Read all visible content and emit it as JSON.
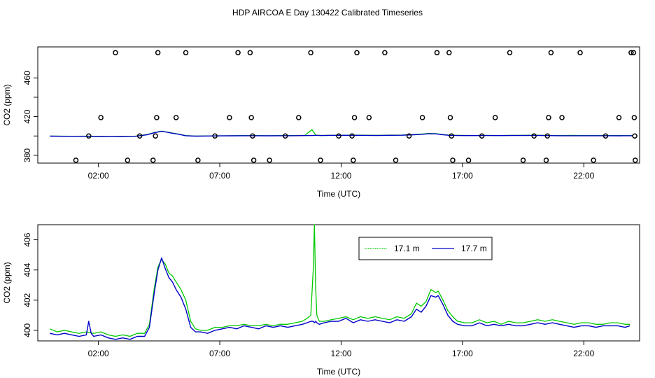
{
  "figure_title": "HDP AIRCOA E  Day 130422  Calibrated Timeseries",
  "colors": {
    "series_17_1": "#00c800",
    "series_17_7": "#0000c8",
    "axes": "#000000"
  },
  "chart_data": [
    {
      "type": "scatter",
      "title": "",
      "xlabel": "Time (UTC)",
      "ylabel": "CO2 (ppm)",
      "xlim": [
        -0.5,
        24.3
      ],
      "ylim": [
        372,
        492
      ],
      "x_ticks": [
        2,
        7,
        12,
        17,
        22
      ],
      "x_tick_labels": [
        "02:00",
        "07:00",
        "12:00",
        "17:00",
        "22:00"
      ],
      "y_ticks": [
        380,
        420,
        460
      ],
      "y_tick_labels": [
        "380",
        "420",
        "460"
      ],
      "y_minor_ticks": [
        400,
        440
      ],
      "grid": false,
      "points": {
        "marker": "open-circle",
        "x_y": [
          [
            1.07,
            375
          ],
          [
            1.6,
            400
          ],
          [
            2.1,
            419
          ],
          [
            2.7,
            486
          ],
          [
            3.2,
            375
          ],
          [
            3.7,
            400
          ],
          [
            4.25,
            375
          ],
          [
            4.35,
            400
          ],
          [
            4.4,
            419
          ],
          [
            4.45,
            486
          ],
          [
            5.2,
            419
          ],
          [
            5.6,
            486
          ],
          [
            6.1,
            375
          ],
          [
            6.8,
            400
          ],
          [
            7.4,
            419
          ],
          [
            7.75,
            486
          ],
          [
            8.25,
            486
          ],
          [
            8.3,
            419
          ],
          [
            8.35,
            400
          ],
          [
            8.4,
            375
          ],
          [
            9.05,
            375
          ],
          [
            9.7,
            400
          ],
          [
            10.25,
            419
          ],
          [
            10.75,
            486
          ],
          [
            11.15,
            375
          ],
          [
            11.9,
            400
          ],
          [
            12.45,
            400
          ],
          [
            12.5,
            375
          ],
          [
            12.55,
            419
          ],
          [
            12.65,
            486
          ],
          [
            13.15,
            419
          ],
          [
            13.8,
            486
          ],
          [
            14.25,
            375
          ],
          [
            14.8,
            400
          ],
          [
            15.35,
            419
          ],
          [
            15.95,
            486
          ],
          [
            16.45,
            486
          ],
          [
            16.5,
            419
          ],
          [
            16.55,
            400
          ],
          [
            16.6,
            375
          ],
          [
            17.25,
            375
          ],
          [
            17.8,
            400
          ],
          [
            18.35,
            419
          ],
          [
            18.95,
            486
          ],
          [
            19.5,
            375
          ],
          [
            19.95,
            400
          ],
          [
            20.45,
            375
          ],
          [
            20.5,
            400
          ],
          [
            20.55,
            419
          ],
          [
            20.65,
            486
          ],
          [
            21.1,
            419
          ],
          [
            21.85,
            486
          ],
          [
            22.4,
            375
          ],
          [
            22.9,
            400
          ],
          [
            23.45,
            419
          ],
          [
            23.95,
            486
          ],
          [
            24.05,
            486
          ],
          [
            24.08,
            419
          ],
          [
            24.1,
            400
          ],
          [
            24.12,
            375
          ]
        ]
      },
      "series": [
        {
          "color": "#00c800",
          "x": [
            0,
            0.5,
            1,
            1.5,
            2,
            2.5,
            3,
            3.5,
            4,
            4.3,
            4.6,
            4.8,
            5,
            5.3,
            5.6,
            6,
            6.5,
            7,
            7.5,
            8,
            8.5,
            9,
            9.5,
            10,
            10.5,
            10.8,
            10.95,
            11.05,
            11.2,
            11.5,
            12,
            12.5,
            13,
            13.5,
            14,
            14.5,
            15,
            15.3,
            15.6,
            15.9,
            16.2,
            16.5,
            17,
            17.5,
            18,
            18.5,
            19,
            19.5,
            20,
            20.5,
            21,
            21.5,
            22,
            22.5,
            23,
            23.5,
            24
          ],
          "y": [
            399.9,
            399.8,
            399.7,
            399.8,
            399.6,
            399.5,
            399.6,
            399.7,
            401.5,
            403.5,
            405,
            404.2,
            403.2,
            402,
            400.5,
            399.9,
            400.1,
            400.2,
            400.3,
            400.4,
            400.5,
            400.3,
            400.4,
            400.5,
            400.6,
            406.5,
            401.0,
            400.7,
            400.5,
            400.7,
            400.8,
            400.9,
            400.8,
            400.7,
            400.9,
            401.0,
            401.6,
            402.0,
            402.6,
            402.4,
            401.5,
            400.8,
            400.6,
            400.5,
            400.6,
            400.5,
            400.6,
            400.7,
            400.8,
            400.6,
            400.5,
            400.6,
            400.5,
            400.4,
            400.5,
            400.4,
            400.5
          ]
        },
        {
          "color": "#0000c8",
          "x": [
            0,
            0.5,
            1,
            1.5,
            2,
            2.5,
            3,
            3.5,
            4,
            4.3,
            4.6,
            4.8,
            5,
            5.3,
            5.6,
            6,
            6.5,
            7,
            7.5,
            8,
            8.5,
            9,
            9.5,
            10,
            10.5,
            10.8,
            10.95,
            11.05,
            11.2,
            11.5,
            12,
            12.5,
            13,
            13.5,
            14,
            14.5,
            15,
            15.3,
            15.6,
            15.9,
            16.2,
            16.5,
            17,
            17.5,
            18,
            18.5,
            19,
            19.5,
            20,
            20.5,
            21,
            21.5,
            22,
            22.5,
            23,
            23.5,
            24
          ],
          "y": [
            399.8,
            399.7,
            399.7,
            399.6,
            399.5,
            399.4,
            399.5,
            399.6,
            401.2,
            403.3,
            404.8,
            404.0,
            403.0,
            401.8,
            400.3,
            399.8,
            400.0,
            400.1,
            400.2,
            400.3,
            400.3,
            400.2,
            400.3,
            400.3,
            400.4,
            400.5,
            400.6,
            400.6,
            400.5,
            400.6,
            400.7,
            400.7,
            400.6,
            400.5,
            400.7,
            400.8,
            401.3,
            401.7,
            402.3,
            402.2,
            401.3,
            400.6,
            400.4,
            400.4,
            400.5,
            400.4,
            400.5,
            400.5,
            400.6,
            400.4,
            400.3,
            400.3,
            400.3,
            400.3,
            400.3,
            400.2,
            400.3
          ]
        }
      ]
    },
    {
      "type": "line",
      "title": "",
      "xlabel": "Time (UTC)",
      "ylabel": "CO2 (ppm)",
      "xlim": [
        -0.5,
        24.3
      ],
      "ylim": [
        399.3,
        407.0
      ],
      "x_ticks": [
        2,
        7,
        12,
        17,
        22
      ],
      "x_tick_labels": [
        "02:00",
        "07:00",
        "12:00",
        "17:00",
        "22:00"
      ],
      "y_ticks": [
        400,
        402,
        404,
        406
      ],
      "y_tick_labels": [
        "400",
        "402",
        "404",
        "406"
      ],
      "grid": false,
      "legend_position": "top-right",
      "series": [
        {
          "name": "17.1 m",
          "color": "#00c800",
          "x": [
            0,
            0.3,
            0.6,
            0.9,
            1.2,
            1.5,
            1.8,
            2.1,
            2.4,
            2.7,
            3.0,
            3.3,
            3.6,
            3.9,
            4.1,
            4.3,
            4.45,
            4.6,
            4.75,
            4.9,
            5.05,
            5.2,
            5.4,
            5.6,
            5.8,
            6.0,
            6.2,
            6.5,
            6.8,
            7.1,
            7.4,
            7.7,
            8.0,
            8.3,
            8.6,
            8.9,
            9.2,
            9.5,
            9.8,
            10.1,
            10.4,
            10.6,
            10.75,
            10.85,
            10.9,
            10.95,
            11.0,
            11.1,
            11.3,
            11.6,
            11.9,
            12.2,
            12.5,
            12.8,
            13.1,
            13.4,
            13.7,
            14.0,
            14.3,
            14.6,
            14.9,
            15.1,
            15.3,
            15.5,
            15.7,
            15.9,
            16.0,
            16.2,
            16.4,
            16.6,
            16.8,
            17.1,
            17.4,
            17.7,
            18.0,
            18.3,
            18.6,
            18.9,
            19.2,
            19.5,
            19.8,
            20.1,
            20.4,
            20.7,
            21.0,
            21.3,
            21.6,
            21.9,
            22.2,
            22.5,
            22.8,
            23.1,
            23.4,
            23.7,
            23.9
          ],
          "y": [
            400.1,
            399.9,
            400.0,
            399.9,
            399.8,
            399.9,
            399.8,
            399.9,
            399.7,
            399.6,
            399.7,
            399.6,
            399.8,
            399.8,
            400.4,
            402.8,
            404.2,
            404.7,
            404.4,
            403.8,
            403.6,
            403.2,
            402.7,
            402.0,
            400.6,
            400.1,
            400.0,
            400.0,
            400.2,
            400.2,
            400.3,
            400.3,
            400.4,
            400.3,
            400.3,
            400.4,
            400.3,
            400.4,
            400.4,
            400.5,
            400.6,
            400.8,
            401.0,
            404.0,
            407.0,
            402.8,
            401.0,
            400.6,
            400.6,
            400.7,
            400.8,
            400.9,
            400.7,
            400.9,
            400.8,
            400.9,
            400.8,
            400.7,
            400.9,
            400.8,
            401.1,
            401.8,
            401.6,
            401.9,
            402.7,
            402.5,
            402.6,
            402.0,
            401.3,
            400.9,
            400.6,
            400.5,
            400.5,
            400.7,
            400.5,
            400.6,
            400.4,
            400.6,
            400.5,
            400.5,
            400.6,
            400.7,
            400.6,
            400.7,
            400.6,
            400.5,
            400.4,
            400.5,
            400.5,
            400.4,
            400.4,
            400.5,
            400.5,
            400.4,
            400.4
          ]
        },
        {
          "name": "17.7 m",
          "color": "#0000c8",
          "x": [
            0,
            0.3,
            0.6,
            0.9,
            1.2,
            1.5,
            1.6,
            1.7,
            1.8,
            2.1,
            2.4,
            2.7,
            3.0,
            3.3,
            3.6,
            3.9,
            4.1,
            4.3,
            4.45,
            4.6,
            4.75,
            4.9,
            5.05,
            5.2,
            5.4,
            5.6,
            5.8,
            6.0,
            6.2,
            6.5,
            6.8,
            7.1,
            7.4,
            7.7,
            8.0,
            8.3,
            8.6,
            8.9,
            9.2,
            9.5,
            9.8,
            10.1,
            10.4,
            10.6,
            10.75,
            10.85,
            10.9,
            10.95,
            11.0,
            11.1,
            11.3,
            11.6,
            11.9,
            12.2,
            12.5,
            12.8,
            13.1,
            13.4,
            13.7,
            14.0,
            14.3,
            14.6,
            14.9,
            15.1,
            15.3,
            15.5,
            15.7,
            15.9,
            16.0,
            16.2,
            16.4,
            16.6,
            16.8,
            17.1,
            17.4,
            17.7,
            18.0,
            18.3,
            18.6,
            18.9,
            19.2,
            19.5,
            19.8,
            20.1,
            20.4,
            20.7,
            21.0,
            21.3,
            21.6,
            21.9,
            22.2,
            22.5,
            22.8,
            23.1,
            23.4,
            23.7,
            23.9
          ],
          "y": [
            399.8,
            399.7,
            399.8,
            399.7,
            399.6,
            399.7,
            400.6,
            399.8,
            399.6,
            399.7,
            399.5,
            399.4,
            399.5,
            399.4,
            399.6,
            399.6,
            400.2,
            402.5,
            404.0,
            404.8,
            404.1,
            403.5,
            403.2,
            402.7,
            402.2,
            401.4,
            400.2,
            399.9,
            399.9,
            399.8,
            400.0,
            400.1,
            400.2,
            400.1,
            400.3,
            400.2,
            400.1,
            400.3,
            400.2,
            400.3,
            400.2,
            400.3,
            400.4,
            400.5,
            400.6,
            400.6,
            400.5,
            400.6,
            400.5,
            400.4,
            400.5,
            400.6,
            400.6,
            400.8,
            400.5,
            400.7,
            400.6,
            400.7,
            400.6,
            400.5,
            400.7,
            400.6,
            400.9,
            401.4,
            401.2,
            401.6,
            402.3,
            402.2,
            402.3,
            401.7,
            401.0,
            400.6,
            400.4,
            400.3,
            400.3,
            400.5,
            400.3,
            400.4,
            400.3,
            400.4,
            400.3,
            400.3,
            400.4,
            400.5,
            400.4,
            400.5,
            400.4,
            400.3,
            400.2,
            400.3,
            400.3,
            400.2,
            400.3,
            400.3,
            400.3,
            400.2,
            400.3
          ]
        }
      ]
    }
  ]
}
